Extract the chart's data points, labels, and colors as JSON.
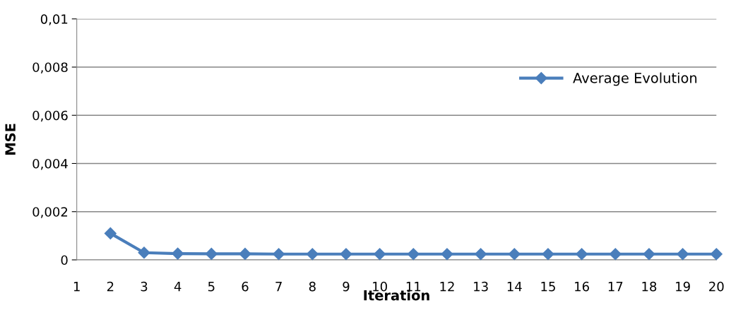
{
  "chart_data": {
    "type": "line",
    "xlabel": "Iteration",
    "ylabel": "MSE",
    "categories": [
      "1",
      "2",
      "3",
      "4",
      "5",
      "6",
      "7",
      "8",
      "9",
      "10",
      "11",
      "12",
      "13",
      "14",
      "15",
      "16",
      "17",
      "18",
      "19",
      "20"
    ],
    "series": [
      {
        "name": "Average Evolution",
        "color": "#4a7ebb",
        "values": [
          null,
          0.0011,
          0.0003,
          0.00026,
          0.00025,
          0.00025,
          0.00024,
          0.00024,
          0.00024,
          0.00024,
          0.00024,
          0.00024,
          0.00024,
          0.00024,
          0.00024,
          0.00024,
          0.00024,
          0.00024,
          0.00024,
          0.00024
        ]
      }
    ],
    "ylim": [
      0,
      0.01
    ],
    "yticks": [
      0,
      {
        "value": 0.002,
        "label": "0,002"
      },
      {
        "value": 0.004,
        "label": "0,004"
      },
      {
        "value": 0.006,
        "label": "0,006"
      },
      {
        "value": 0.008,
        "label": "0,008"
      },
      {
        "value": 0.01,
        "label": "0,01"
      }
    ],
    "grid": "y",
    "legend": "right",
    "marker": "diamond",
    "line_style": "solid"
  }
}
